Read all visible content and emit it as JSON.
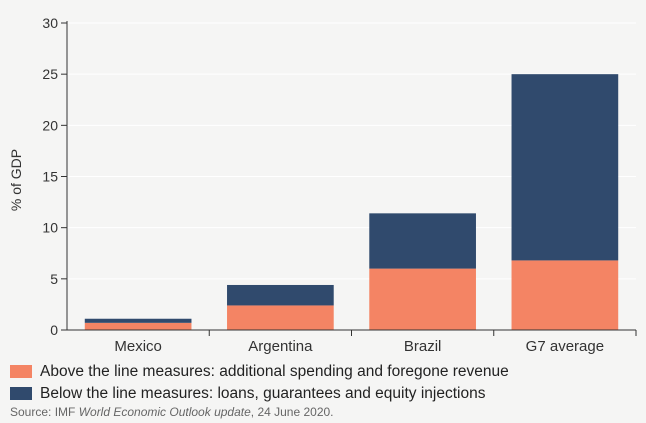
{
  "chart_data": {
    "type": "bar",
    "stacked": true,
    "categories": [
      "Mexico",
      "Argentina",
      "Brazil",
      "G7 average"
    ],
    "series": [
      {
        "name": "Above the line measures: additional spending and foregone revenue",
        "color": "#f48464",
        "values": [
          0.7,
          2.4,
          6.0,
          6.8
        ]
      },
      {
        "name": "Below the line measures: loans, guarantees and equity injections",
        "color": "#304a6d",
        "values": [
          0.4,
          2.0,
          5.4,
          18.2
        ]
      }
    ],
    "ylabel": "% of GDP",
    "ylim": [
      0,
      30
    ],
    "yticks": [
      0,
      5,
      10,
      15,
      20,
      25,
      30
    ],
    "grid": true,
    "legend_position": "bottom"
  },
  "source": {
    "prefix": "Source: IMF ",
    "title": "World Economic Outlook update",
    "suffix": ", 24 June 2020."
  }
}
